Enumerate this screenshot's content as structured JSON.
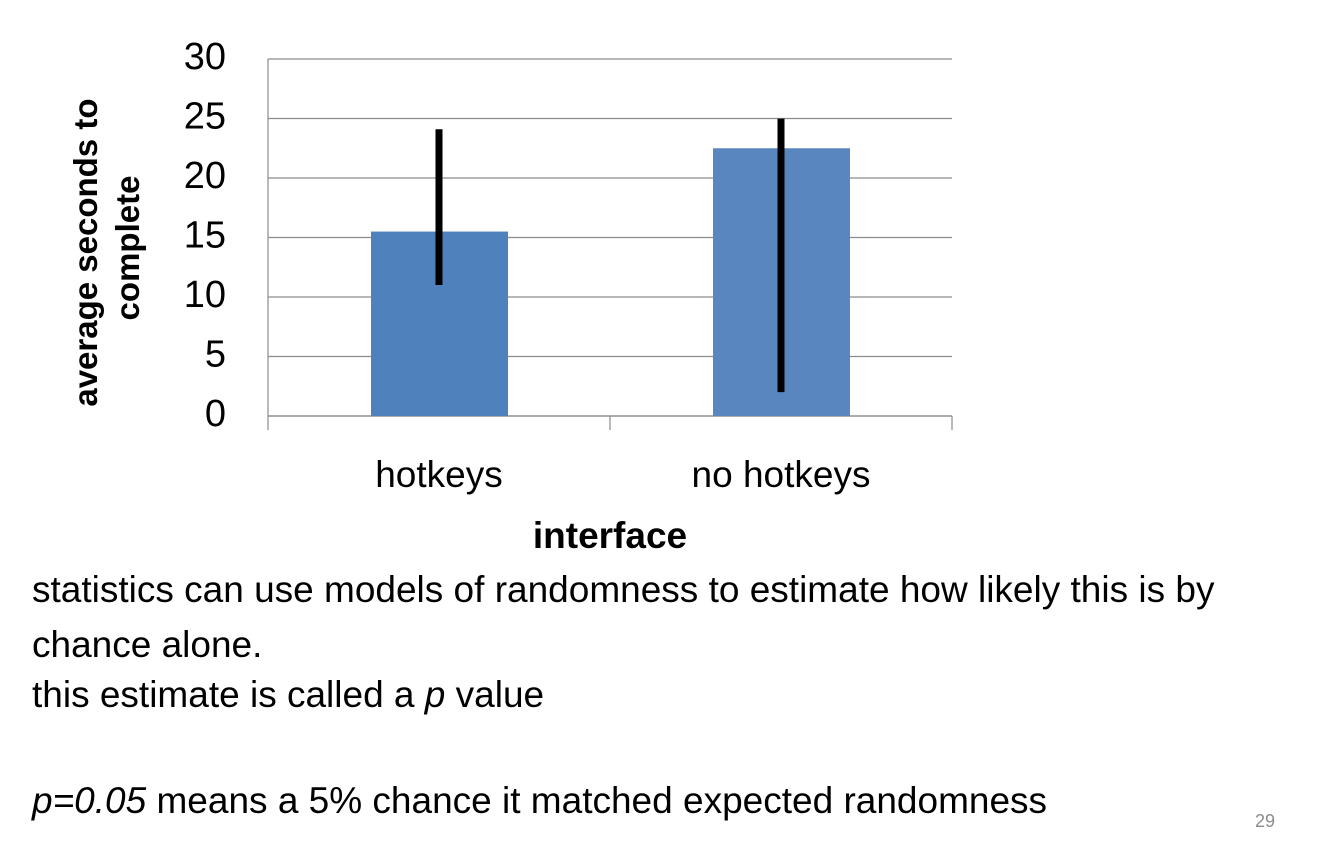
{
  "chart_data": {
    "type": "bar",
    "xlabel": "interface",
    "ylabel": "average seconds to complete",
    "categories": [
      "hotkeys",
      "no hotkeys"
    ],
    "values": [
      15.5,
      22.5
    ],
    "error_minus": [
      4.2,
      20.2
    ],
    "error_plus": [
      8.3,
      2.2
    ],
    "colors": [
      "#4f81bd",
      "#5a86bf"
    ],
    "error_color": "#000000",
    "ylim": [
      0,
      30
    ],
    "yticks": [
      0,
      5,
      10,
      15,
      20,
      25,
      30
    ],
    "grid": true
  },
  "slide": {
    "paragraphs": [
      [
        {
          "text": "statistics can use models of randomness to estimate how likely this is by chance alone."
        }
      ],
      [
        {
          "text": "this estimate is called a "
        },
        {
          "text": "p",
          "italic": true
        },
        {
          "text": " value"
        }
      ],
      [
        {
          "text": "p=0.05",
          "italic": true
        },
        {
          "text": " means a 5% chance it matched expected randomness"
        }
      ]
    ],
    "page_number": "29"
  }
}
